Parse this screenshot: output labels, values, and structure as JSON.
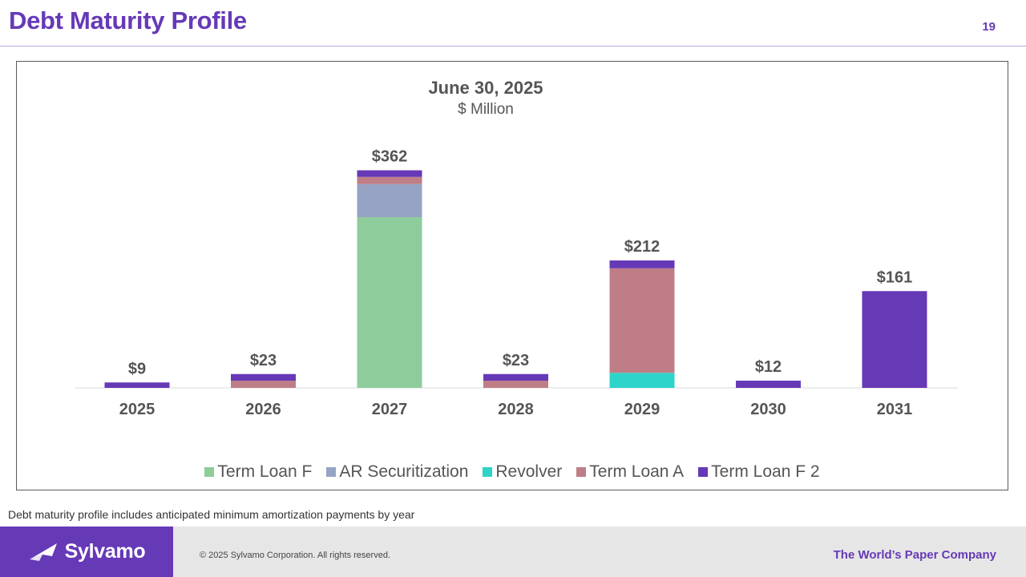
{
  "page": {
    "title": "Debt Maturity Profile",
    "page_number": "19",
    "footnote": "Debt maturity profile includes anticipated minimum amortization payments by year"
  },
  "footer": {
    "logo_text": "Sylvamo",
    "copyright": "© 2025 Sylvamo Corporation. All rights reserved.",
    "tagline": "The World’s Paper Company"
  },
  "colors": {
    "brand": "#6639b7",
    "term_loan_f": "#8fcc9c",
    "ar_securitization": "#96a3c4",
    "revolver": "#2dd4c9",
    "term_loan_a": "#bf7e87",
    "term_loan_f2": "#6639b7"
  },
  "chart_data": {
    "type": "bar",
    "stacked": true,
    "title": "June 30, 2025",
    "subtitle": "$ Million",
    "xlabel": "",
    "ylabel": "",
    "ylim": [
      0,
      400
    ],
    "grid": false,
    "legend_position": "bottom",
    "categories": [
      "2025",
      "2026",
      "2027",
      "2028",
      "2029",
      "2030",
      "2031"
    ],
    "series": [
      {
        "name": "Term Loan F",
        "color": "#8fcc9c",
        "values": [
          0,
          0,
          284,
          0,
          0,
          0,
          0
        ]
      },
      {
        "name": "AR Securitization",
        "color": "#96a3c4",
        "values": [
          0,
          0,
          55,
          0,
          0,
          0,
          0
        ]
      },
      {
        "name": "Revolver",
        "color": "#2dd4c9",
        "values": [
          0,
          0,
          0,
          0,
          25,
          0,
          0
        ]
      },
      {
        "name": "Term Loan A",
        "color": "#bf7e87",
        "values": [
          0,
          12,
          12,
          12,
          174,
          0,
          0
        ]
      },
      {
        "name": "Term Loan F 2",
        "color": "#6639b7",
        "values": [
          9,
          11,
          11,
          11,
          13,
          12,
          161
        ]
      }
    ],
    "totals": [
      9,
      23,
      362,
      23,
      212,
      12,
      161
    ],
    "total_labels": [
      "$9",
      "$23",
      "$362",
      "$23",
      "$212",
      "$12",
      "$161"
    ]
  }
}
